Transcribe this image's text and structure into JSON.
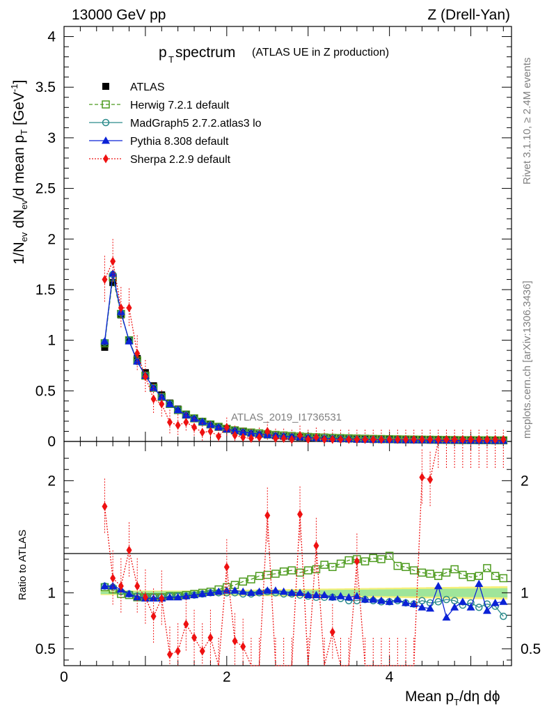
{
  "header": {
    "energy_label": "13000 GeV pp",
    "process_label": "Z (Drell-Yan)"
  },
  "side": {
    "rivet_label": "Rivet 3.1.10, ≥ 2.4M events",
    "mcplots_label": "mcplots.cern.ch [arXiv:1306.3436]"
  },
  "plot": {
    "title_main": "p",
    "title_sub": "T",
    "title_rest": " spectrum",
    "title_note": "(ATLAS UE in Z production)",
    "analysis_id": "ATLAS_2019_I1736531",
    "ylabel_top": "1/N",
    "ylabel_bottom": "Ratio to ATLAS",
    "xlabel": "Mean p",
    "xlabel_sub": "T",
    "xlabel_rest": "/dη dϕ"
  },
  "legend": [
    {
      "name": "ATLAS",
      "color": "#000000",
      "marker": "filled-square"
    },
    {
      "name": "Herwig 7.2.1 default",
      "color": "#4c9a1d",
      "marker": "open-square"
    },
    {
      "name": "MadGraph5 2.7.2.atlas3 lo",
      "color": "#2a8a8a",
      "marker": "open-circle"
    },
    {
      "name": "Pythia 8.308 default",
      "color": "#0b22d6",
      "marker": "filled-triangle"
    },
    {
      "name": "Sherpa 2.2.9 default",
      "color": "#ee1111",
      "marker": "filled-diamond"
    }
  ],
  "chart_data": [
    {
      "type": "line",
      "panel": "main",
      "xlim": [
        0,
        5.5
      ],
      "ylim": [
        0,
        4.1
      ],
      "yticks": [
        "0",
        "0.5",
        "1",
        "1.5",
        "2",
        "2.5",
        "3",
        "3.5",
        "4"
      ],
      "xticks": [
        "0",
        "2",
        "4"
      ],
      "x": [
        0.5,
        0.6,
        0.7,
        0.8,
        0.9,
        1.0,
        1.1,
        1.2,
        1.3,
        1.4,
        1.5,
        1.6,
        1.7,
        1.8,
        1.9,
        2.0,
        2.1,
        2.2,
        2.3,
        2.4,
        2.5,
        2.6,
        2.7,
        2.8,
        2.9,
        3.0,
        3.1,
        3.2,
        3.3,
        3.4,
        3.5,
        3.6,
        3.7,
        3.8,
        3.9,
        4.0,
        4.1,
        4.2,
        4.3,
        4.4,
        4.5,
        4.6,
        4.7,
        4.8,
        4.9,
        5.0,
        5.1,
        5.2,
        5.3,
        5.4
      ],
      "series": [
        {
          "name": "ATLAS",
          "values": [
            0.93,
            1.57,
            1.25,
            1.0,
            0.82,
            0.68,
            0.55,
            0.46,
            0.38,
            0.32,
            0.27,
            0.23,
            0.195,
            0.165,
            0.14,
            0.12,
            0.105,
            0.092,
            0.081,
            0.072,
            0.064,
            0.057,
            0.051,
            0.046,
            0.041,
            0.037,
            0.034,
            0.031,
            0.028,
            0.026,
            0.024,
            0.022,
            0.021,
            0.019,
            0.018,
            0.017,
            0.016,
            0.015,
            0.014,
            0.014,
            0.013,
            0.012,
            0.012,
            0.011,
            0.011,
            0.01,
            0.01,
            0.01,
            0.009,
            0.009
          ]
        },
        {
          "name": "Herwig 7.2.1 default",
          "values": [
            0.97,
            1.62,
            1.26,
            1.0,
            0.8,
            0.65,
            0.53,
            0.44,
            0.37,
            0.31,
            0.265,
            0.228,
            0.195,
            0.168,
            0.145,
            0.125,
            0.11,
            0.098,
            0.088,
            0.08,
            0.072,
            0.065,
            0.059,
            0.054,
            0.049,
            0.045,
            0.042,
            0.039,
            0.036,
            0.033,
            0.031,
            0.029,
            0.027,
            0.025,
            0.024,
            0.022,
            0.021,
            0.02,
            0.019,
            0.018,
            0.017,
            0.016,
            0.015,
            0.014,
            0.013,
            0.013,
            0.012,
            0.012,
            0.011,
            0.011
          ]
        },
        {
          "name": "MadGraph5 2.7.2.atlas3 lo",
          "values": [
            0.98,
            1.65,
            1.27,
            1.0,
            0.79,
            0.65,
            0.53,
            0.44,
            0.37,
            0.31,
            0.26,
            0.225,
            0.19,
            0.163,
            0.14,
            0.12,
            0.106,
            0.093,
            0.082,
            0.073,
            0.065,
            0.058,
            0.052,
            0.047,
            0.042,
            0.037,
            0.034,
            0.031,
            0.028,
            0.026,
            0.024,
            0.021,
            0.02,
            0.018,
            0.017,
            0.016,
            0.015,
            0.014,
            0.013,
            0.013,
            0.012,
            0.011,
            0.011,
            0.01,
            0.01,
            0.009,
            0.009,
            0.009,
            0.008,
            0.008
          ]
        },
        {
          "name": "Pythia 8.308 default",
          "values": [
            0.99,
            1.66,
            1.28,
            0.99,
            0.79,
            0.65,
            0.53,
            0.44,
            0.37,
            0.31,
            0.26,
            0.225,
            0.195,
            0.165,
            0.14,
            0.12,
            0.106,
            0.093,
            0.082,
            0.073,
            0.065,
            0.058,
            0.052,
            0.047,
            0.042,
            0.037,
            0.034,
            0.031,
            0.028,
            0.026,
            0.024,
            0.021,
            0.02,
            0.018,
            0.017,
            0.016,
            0.015,
            0.014,
            0.013,
            0.013,
            0.012,
            0.011,
            0.011,
            0.01,
            0.01,
            0.009,
            0.009,
            0.009,
            0.008,
            0.008
          ]
        },
        {
          "name": "Sherpa 2.2.9 default",
          "values": [
            1.6,
            1.78,
            1.32,
            1.32,
            0.87,
            0.64,
            0.42,
            0.37,
            0.19,
            0.16,
            0.19,
            0.14,
            0.09,
            0.1,
            0.05,
            0.14,
            0.06,
            0.04,
            0.03,
            0.04,
            0.1,
            0.03,
            0.03,
            0.02,
            0.06,
            0.02,
            0.04,
            0.02,
            0.02,
            0.02,
            0.02,
            0.02,
            0.02,
            0.02,
            0.02,
            0.02,
            0.02,
            0.02,
            0.02,
            0.02,
            0.02,
            0.02,
            0.02,
            0.02,
            0.02,
            0.02,
            0.02,
            0.02,
            0.02,
            0.02
          ]
        }
      ]
    },
    {
      "type": "line",
      "panel": "ratio",
      "xlim": [
        0,
        5.5
      ],
      "ylim": [
        0.35,
        2.35
      ],
      "yticks": [
        "0.5",
        "1",
        "2"
      ],
      "xticks": [
        "0",
        "2",
        "4"
      ],
      "x": [
        0.5,
        0.6,
        0.7,
        0.8,
        0.9,
        1.0,
        1.1,
        1.2,
        1.3,
        1.4,
        1.5,
        1.6,
        1.7,
        1.8,
        1.9,
        2.0,
        2.1,
        2.2,
        2.3,
        2.4,
        2.5,
        2.6,
        2.7,
        2.8,
        2.9,
        3.0,
        3.1,
        3.2,
        3.3,
        3.4,
        3.5,
        3.6,
        3.7,
        3.8,
        3.9,
        4.0,
        4.1,
        4.2,
        4.3,
        4.4,
        4.5,
        4.6,
        4.7,
        4.8,
        4.9,
        5.0,
        5.1,
        5.2,
        5.3,
        5.4
      ],
      "series": [
        {
          "name": "Herwig 7.2.1 default",
          "values": [
            1.05,
            1.03,
            0.99,
            0.98,
            0.96,
            0.96,
            0.96,
            0.96,
            0.97,
            0.97,
            0.98,
            0.99,
            1.0,
            1.01,
            1.03,
            1.05,
            1.07,
            1.1,
            1.12,
            1.15,
            1.16,
            1.17,
            1.19,
            1.2,
            1.18,
            1.2,
            1.21,
            1.25,
            1.23,
            1.26,
            1.29,
            1.3,
            1.28,
            1.31,
            1.3,
            1.33,
            1.24,
            1.23,
            1.2,
            1.18,
            1.17,
            1.15,
            1.18,
            1.21,
            1.16,
            1.14,
            1.15,
            1.22,
            1.15,
            1.13
          ]
        },
        {
          "name": "MadGraph5 2.7.2.atlas3 lo",
          "values": [
            1.06,
            1.05,
            1.01,
            0.99,
            0.97,
            0.96,
            0.96,
            0.96,
            0.97,
            0.97,
            0.97,
            0.98,
            0.99,
            1.0,
            1.0,
            1.0,
            1.0,
            0.99,
            0.99,
            1.0,
            1.01,
            1.0,
            0.99,
            0.99,
            0.98,
            0.97,
            0.96,
            0.96,
            0.96,
            0.95,
            0.93,
            0.93,
            0.94,
            0.93,
            0.92,
            0.92,
            0.93,
            0.91,
            0.9,
            0.93,
            0.91,
            0.92,
            0.94,
            0.93,
            0.89,
            0.91,
            0.87,
            0.9,
            0.88,
            0.79
          ]
        },
        {
          "name": "Pythia 8.308 default",
          "values": [
            1.06,
            1.06,
            1.03,
            0.99,
            0.96,
            0.95,
            0.95,
            0.95,
            0.96,
            0.96,
            0.97,
            0.98,
            0.99,
            1.0,
            1.01,
            1.02,
            1.02,
            1.01,
            1.0,
            1.01,
            1.02,
            1.02,
            1.01,
            1.0,
            1.0,
            0.98,
            0.98,
            0.98,
            0.96,
            0.97,
            0.96,
            0.97,
            0.94,
            0.94,
            0.93,
            0.92,
            0.94,
            0.91,
            0.9,
            0.87,
            0.86,
            1.06,
            0.78,
            0.87,
            0.92,
            0.87,
            1.08,
            0.84,
            0.91,
            0.92
          ]
        },
        {
          "name": "Sherpa 2.2.9 default",
          "values": [
            1.77,
            1.13,
            1.06,
            1.38,
            1.06,
            0.96,
            0.79,
            0.95,
            0.45,
            0.48,
            0.72,
            0.6,
            0.48,
            0.6,
            0.35,
            1.23,
            0.57,
            0.52,
            0.35,
            0.35,
            1.69,
            0.35,
            0.35,
            0.35,
            1.7,
            0.35,
            1.42,
            0.35,
            0.65,
            0.35,
            0.35,
            1.28,
            0.35,
            0.35,
            0.35,
            0.35,
            0.35,
            0.35,
            0.35,
            2.03,
            2.01,
            2.35,
            2.35,
            2.35,
            2.35,
            2.35,
            2.35,
            2.35,
            2.35,
            2.35
          ]
        }
      ],
      "reference_line": 1
    }
  ]
}
